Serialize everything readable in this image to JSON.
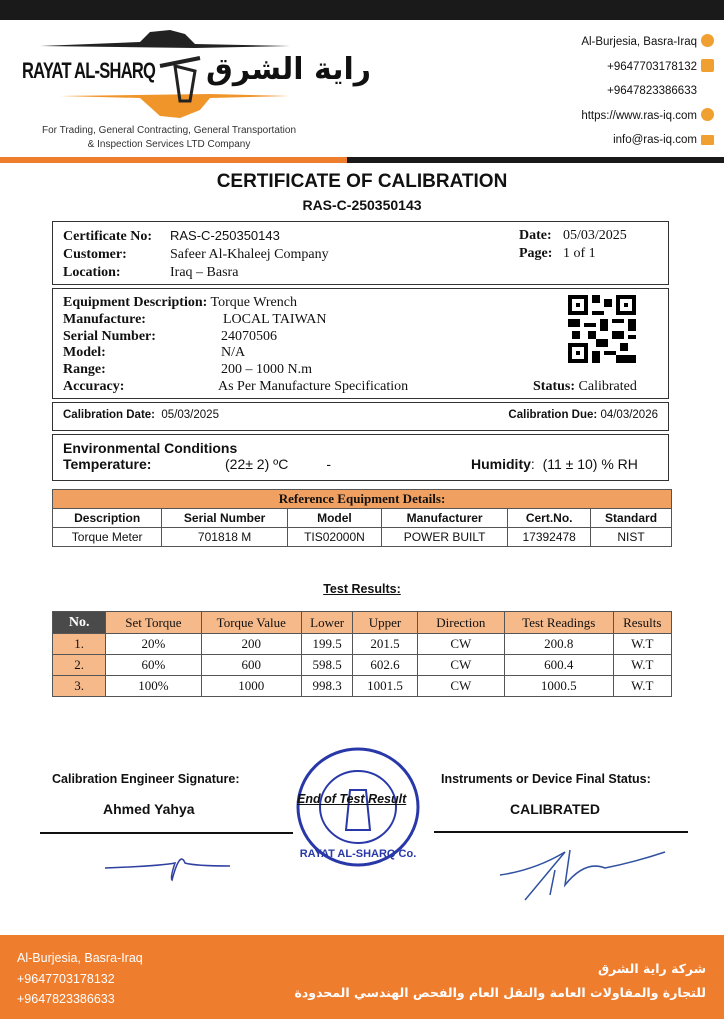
{
  "header": {
    "logo_en": "RAYAT AL-SHARQ",
    "logo_ar": "راية الشرق",
    "tagline_1": "For Trading, General Contracting, General Transportation",
    "tagline_2": "& Inspection Services LTD Company",
    "contacts": [
      {
        "text": "Al-Burjesia, Basra-Iraq",
        "icon": "location-pin-icon"
      },
      {
        "text": "+9647703178132",
        "icon": "phone-icon"
      },
      {
        "text": "+9647823386633",
        "icon": ""
      },
      {
        "text": "https://www.ras-iq.com",
        "icon": "globe-icon"
      },
      {
        "text": "info@ras-iq.com",
        "icon": "envelope-icon"
      }
    ]
  },
  "title": "CERTIFICATE OF CALIBRATION",
  "cert_code": "RAS-C-250350143",
  "info": {
    "cert_no_label": "Certificate No:",
    "cert_no": "RAS-C-250350143",
    "customer_label": "Customer:",
    "customer": "Safeer Al-Khaleej Company",
    "location_label": "Location:",
    "location": "Iraq – Basra",
    "date_label": "Date:",
    "date": "05/03/2025",
    "page_label": "Page:",
    "page": "1 of 1"
  },
  "equipment": {
    "desc_label": "Equipment Description:",
    "desc": "Torque Wrench",
    "manufacture_label": "Manufacture:",
    "manufacture": "LOCAL TAIWAN",
    "serial_label": "Serial Number:",
    "serial": "24070506",
    "model_label": "Model:",
    "model": "N/A",
    "range_label": "Range:",
    "range": "200 – 1000 N.m",
    "accuracy_label": "Accuracy:",
    "accuracy": "As Per Manufacture Specification",
    "status_label": "Status:",
    "status": "Calibrated"
  },
  "calibration": {
    "date_label": "Calibration Date:",
    "date": "05/03/2025",
    "due_label": "Calibration Due:",
    "due": "04/03/2026"
  },
  "environment": {
    "title": "Environmental Conditions",
    "temp_label": "Temperature:",
    "temp": "(22± 2) ºC",
    "dash": "-",
    "humidity_label": "Humidity",
    "humidity": "(11 ± 10) % RH"
  },
  "reference": {
    "title": "Reference Equipment Details:",
    "headers": [
      "Description",
      "Serial Number",
      "Model",
      "Manufacturer",
      "Cert.No.",
      "Standard"
    ],
    "row": [
      "Torque Meter",
      "701818 M",
      "TIS02000N",
      "POWER BUILT",
      "17392478",
      "NIST"
    ]
  },
  "test": {
    "title": "Test Results:",
    "headers": [
      "No.",
      "Set Torque",
      "Torque Value",
      "Lower",
      "Upper",
      "Direction",
      "Test Readings",
      "Results"
    ],
    "rows": [
      [
        "1.",
        "20%",
        "200",
        "199.5",
        "201.5",
        "CW",
        "200.8",
        "W.T"
      ],
      [
        "2.",
        "60%",
        "600",
        "598.5",
        "602.6",
        "CW",
        "600.4",
        "W.T"
      ],
      [
        "3.",
        "100%",
        "1000",
        "998.3",
        "1001.5",
        "CW",
        "1000.5",
        "W.T"
      ]
    ]
  },
  "signature": {
    "engineer_label": "Calibration Engineer Signature:",
    "engineer": "Ahmed Yahya",
    "end_text": "End of Test Result",
    "final_label": "Instruments or Device Final Status:",
    "final_status": "CALIBRATED",
    "stamp_text": "RAYAT AL-SHARQ Co."
  },
  "footer": {
    "address": "Al-Burjesia, Basra-Iraq",
    "phone1": "+9647703178132",
    "phone2": "+9647823386633",
    "ar_1": "شركة راية الشرق",
    "ar_2": "للتجارة والمقاولات العامة والنقل العام والفحص الهندسي المحدودة"
  },
  "colors": {
    "accent": "#ee7d2e",
    "dark": "#1a1a1a"
  }
}
